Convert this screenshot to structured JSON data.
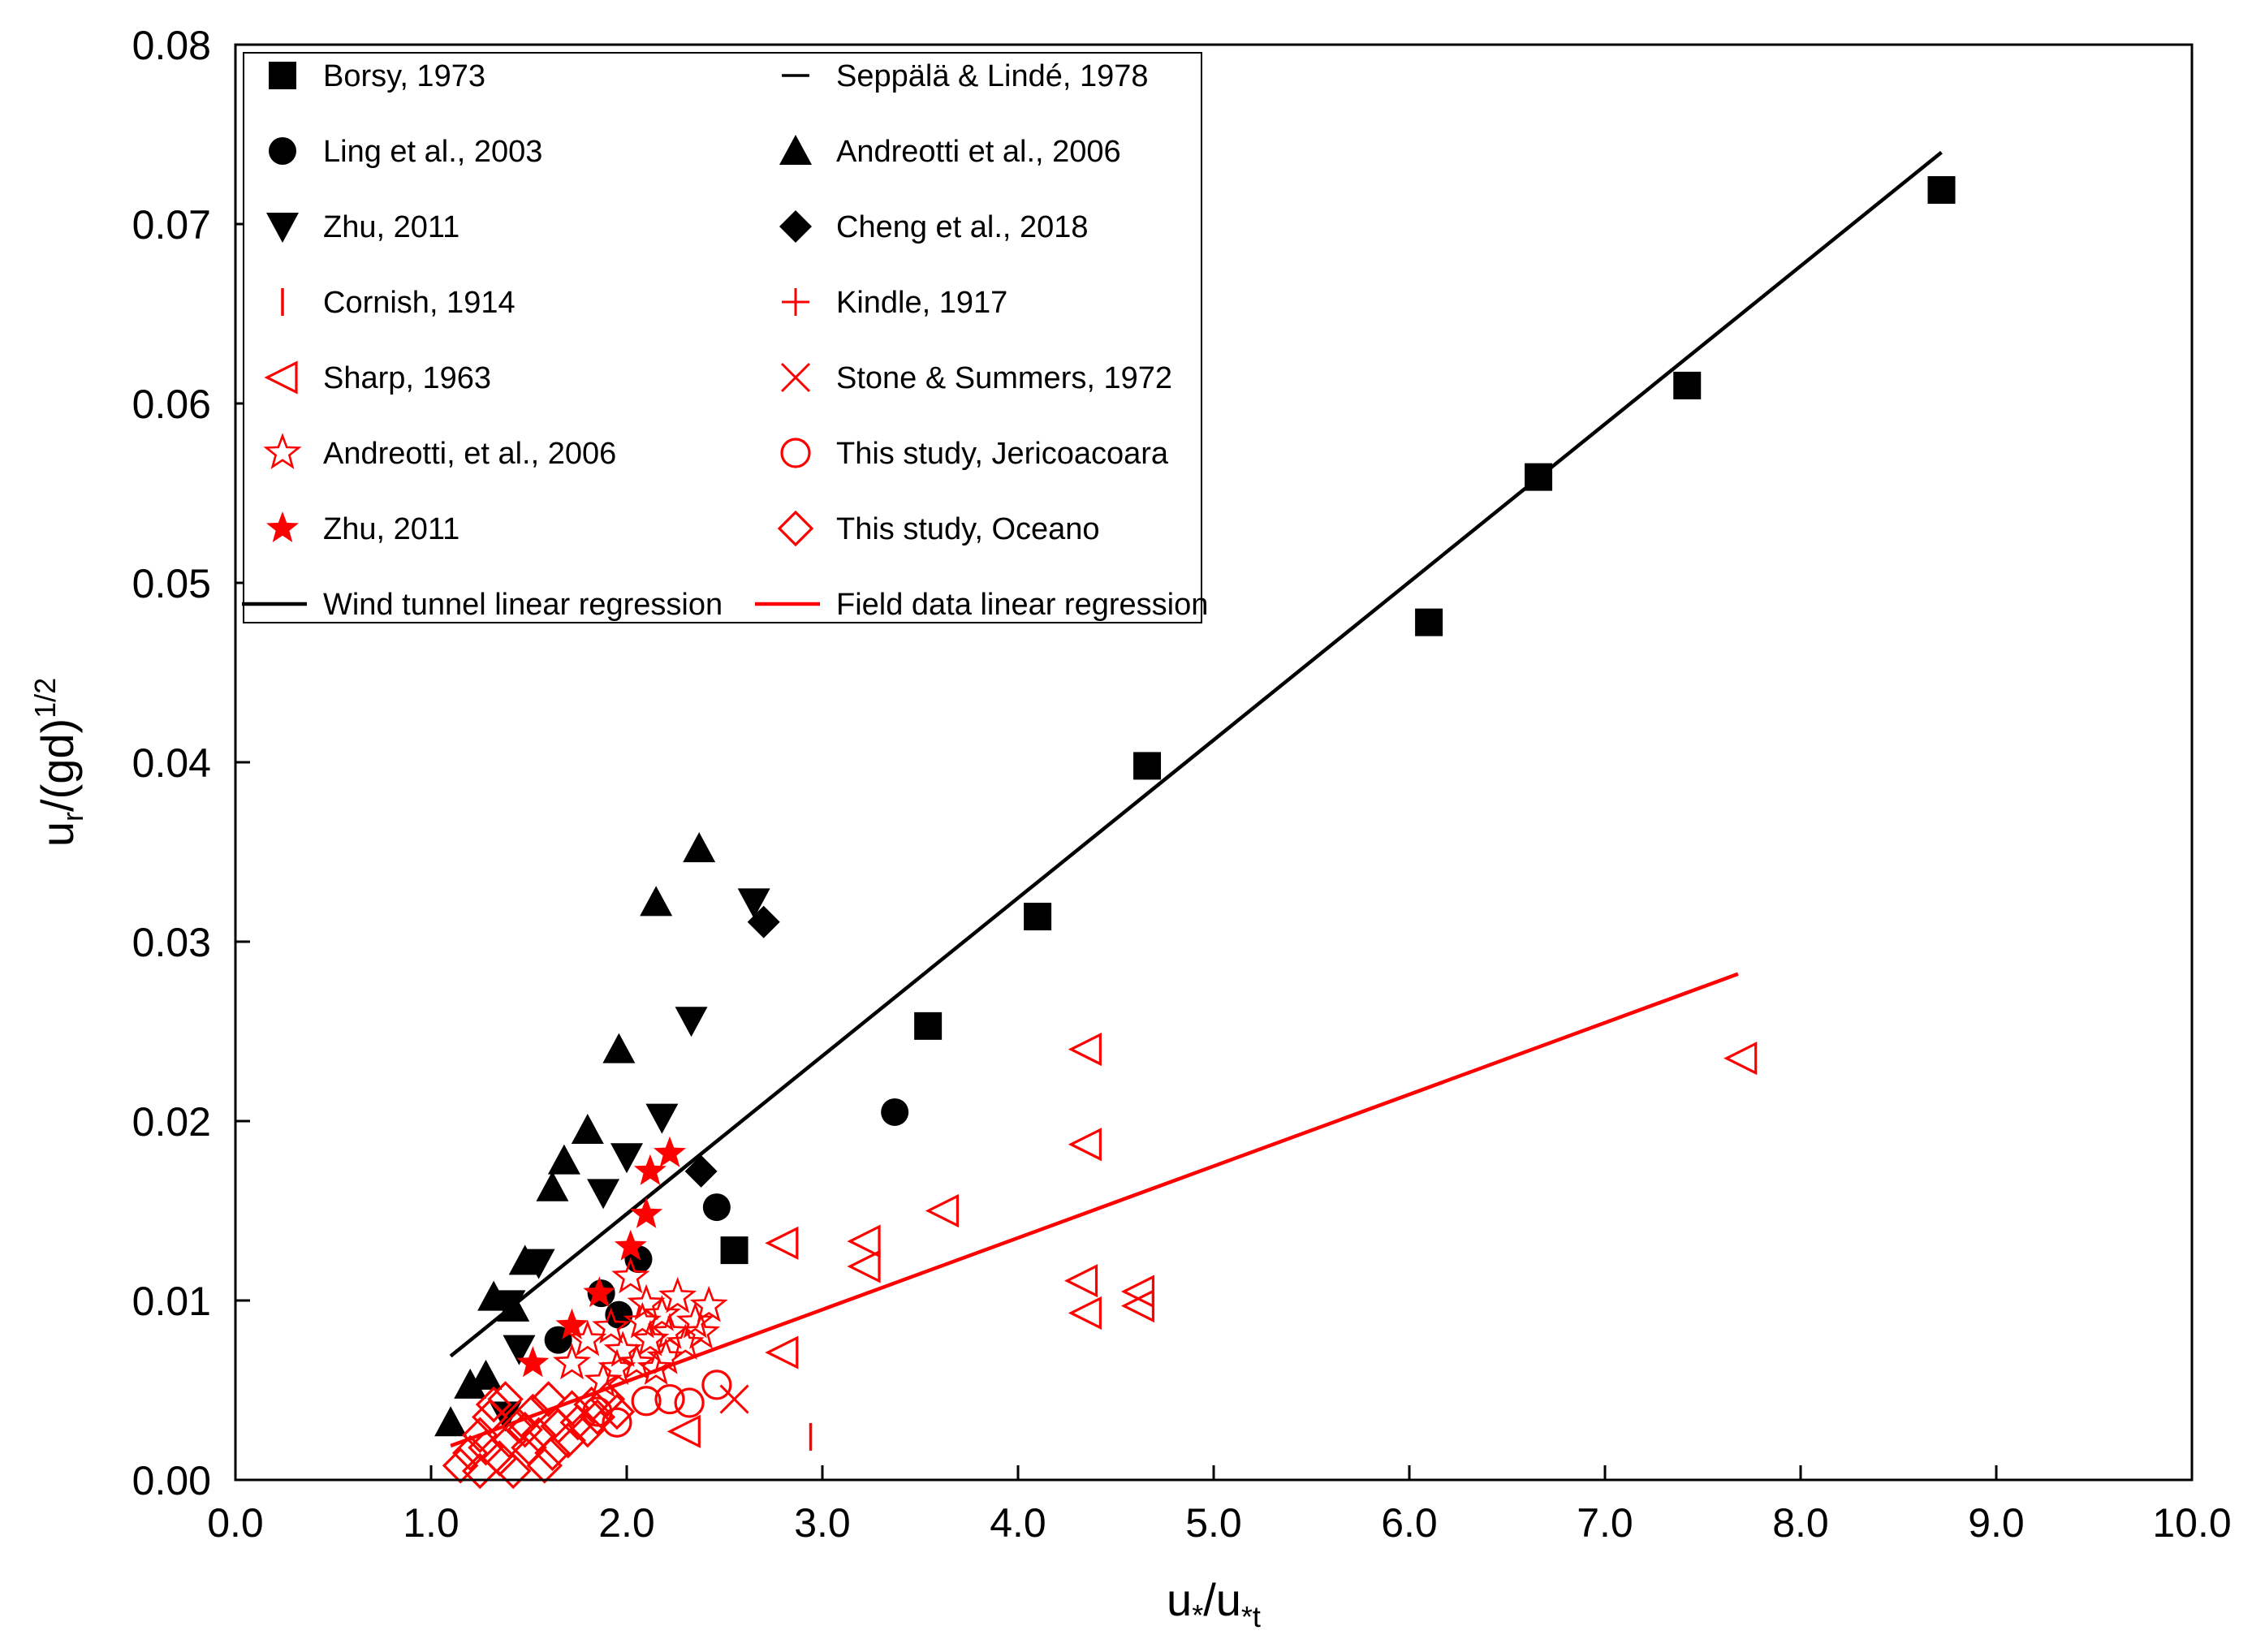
{
  "chart_data": {
    "type": "scatter",
    "title": "",
    "xlabel": {
      "main": "u",
      "sub1": "*",
      "sep": "/u",
      "sub2": "*t"
    },
    "ylabel": {
      "main": "u",
      "sub": "r",
      "rest": "/(gd)",
      "sup": "1/2"
    },
    "xlim": [
      0.0,
      10.0
    ],
    "ylim": [
      0.0,
      0.08
    ],
    "x_ticks": [
      0.0,
      1.0,
      2.0,
      3.0,
      4.0,
      5.0,
      6.0,
      7.0,
      8.0,
      9.0,
      10.0
    ],
    "y_ticks": [
      0.0,
      0.01,
      0.02,
      0.03,
      0.04,
      0.05,
      0.06,
      0.07,
      0.08
    ],
    "x_tick_labels": [
      "0.0",
      "1.0",
      "2.0",
      "3.0",
      "4.0",
      "5.0",
      "6.0",
      "7.0",
      "8.0",
      "9.0",
      "10.0"
    ],
    "y_tick_labels": [
      "0.00",
      "0.01",
      "0.02",
      "0.03",
      "0.04",
      "0.05",
      "0.06",
      "0.07",
      "0.08"
    ],
    "grid": false,
    "legend_position": "top-left",
    "colors": {
      "black": "#000000",
      "red": "#ff0000"
    },
    "series": [
      {
        "name": "Borsy, 1973",
        "marker": "square-filled",
        "color": "#000000",
        "points": [
          [
            2.55,
            0.0128
          ],
          [
            3.54,
            0.0253
          ],
          [
            4.1,
            0.0314
          ],
          [
            4.66,
            0.0398
          ],
          [
            6.1,
            0.0478
          ],
          [
            6.66,
            0.0559
          ],
          [
            7.42,
            0.061
          ],
          [
            8.72,
            0.0719
          ]
        ]
      },
      {
        "name": "Seppälä & Lindé, 1978",
        "marker": "dash",
        "color": "#000000",
        "points": []
      },
      {
        "name": "Ling et al., 2003",
        "marker": "circle-filled",
        "color": "#000000",
        "points": [
          [
            1.65,
            0.0078
          ],
          [
            1.87,
            0.0104
          ],
          [
            2.06,
            0.0123
          ],
          [
            2.46,
            0.0152
          ],
          [
            3.37,
            0.0205
          ],
          [
            1.96,
            0.0092
          ]
        ]
      },
      {
        "name": "Andreotti et al., 2006",
        "marker": "triangle-up-filled",
        "color": "#000000",
        "points": [
          [
            1.1,
            0.0032
          ],
          [
            1.2,
            0.0053
          ],
          [
            1.32,
            0.0102
          ],
          [
            1.48,
            0.0122
          ],
          [
            1.62,
            0.0163
          ],
          [
            1.68,
            0.0178
          ],
          [
            1.8,
            0.0195
          ],
          [
            1.96,
            0.024
          ],
          [
            2.15,
            0.0322
          ],
          [
            2.37,
            0.0352
          ],
          [
            1.42,
            0.0096
          ],
          [
            1.28,
            0.0058
          ]
        ]
      },
      {
        "name": "Zhu, 2011",
        "marker": "triangle-down-filled",
        "color": "#000000",
        "points": [
          [
            1.38,
            0.0036
          ],
          [
            1.45,
            0.0073
          ],
          [
            1.55,
            0.0121
          ],
          [
            1.88,
            0.016
          ],
          [
            2.0,
            0.018
          ],
          [
            2.18,
            0.0202
          ],
          [
            2.33,
            0.0256
          ],
          [
            2.65,
            0.0322
          ],
          [
            1.4,
            0.0098
          ]
        ]
      },
      {
        "name": "Cheng et al., 2018",
        "marker": "diamond-filled",
        "color": "#000000",
        "points": [
          [
            2.38,
            0.0172
          ],
          [
            2.7,
            0.0311
          ]
        ]
      },
      {
        "name": "Cornish, 1914",
        "marker": "vline",
        "color": "#ff0000",
        "points": [
          [
            2.94,
            0.0024
          ]
        ]
      },
      {
        "name": "Kindle, 1917",
        "marker": "plus",
        "color": "#ff0000",
        "points": []
      },
      {
        "name": "Sharp, 1963",
        "marker": "triangle-left-open",
        "color": "#ff0000",
        "points": [
          [
            2.3,
            0.0027
          ],
          [
            2.8,
            0.0071
          ],
          [
            2.8,
            0.0132
          ],
          [
            3.22,
            0.0133
          ],
          [
            3.22,
            0.0119
          ],
          [
            3.62,
            0.015
          ],
          [
            4.35,
            0.024
          ],
          [
            4.35,
            0.0187
          ],
          [
            4.33,
            0.0111
          ],
          [
            4.35,
            0.0093
          ],
          [
            4.62,
            0.0105
          ],
          [
            4.62,
            0.0097
          ],
          [
            7.7,
            0.0235
          ]
        ]
      },
      {
        "name": "Stone & Summers, 1972",
        "marker": "x",
        "color": "#ff0000",
        "points": [
          [
            2.55,
            0.0045
          ]
        ]
      },
      {
        "name": "Andreotti, et al., 2006",
        "marker": "star-open",
        "color": "#ff0000",
        "points": [
          [
            1.72,
            0.0065
          ],
          [
            1.8,
            0.0078
          ],
          [
            1.88,
            0.0055
          ],
          [
            1.92,
            0.0085
          ],
          [
            1.98,
            0.0072
          ],
          [
            2.02,
            0.0113
          ],
          [
            2.05,
            0.0065
          ],
          [
            2.08,
            0.0088
          ],
          [
            2.12,
            0.0078
          ],
          [
            2.15,
            0.0062
          ],
          [
            2.18,
            0.0092
          ],
          [
            2.22,
            0.0082
          ],
          [
            2.26,
            0.0102
          ],
          [
            2.3,
            0.0076
          ],
          [
            2.35,
            0.0088
          ],
          [
            2.42,
            0.0097
          ],
          [
            2.2,
            0.0068
          ],
          [
            1.95,
            0.0062
          ],
          [
            2.1,
            0.0098
          ],
          [
            2.38,
            0.0082
          ]
        ]
      },
      {
        "name": "This study, Jericoacoara",
        "marker": "circle-open",
        "color": "#ff0000",
        "points": [
          [
            1.95,
            0.0032
          ],
          [
            2.1,
            0.0044
          ],
          [
            2.22,
            0.0045
          ],
          [
            2.32,
            0.0043
          ],
          [
            2.46,
            0.0053
          ],
          [
            1.85,
            0.0038
          ]
        ]
      },
      {
        "name": "Zhu, 2011",
        "marker": "star-filled",
        "color": "#ff0000",
        "points": [
          [
            1.52,
            0.0065
          ],
          [
            1.72,
            0.0086
          ],
          [
            1.86,
            0.0104
          ],
          [
            2.02,
            0.013
          ],
          [
            2.1,
            0.0148
          ],
          [
            2.12,
            0.0172
          ],
          [
            2.22,
            0.0182
          ]
        ]
      },
      {
        "name": "This study, Oceano",
        "marker": "diamond-open",
        "color": "#ff0000",
        "points": [
          [
            1.15,
            0.0008
          ],
          [
            1.2,
            0.0015
          ],
          [
            1.25,
            0.0025
          ],
          [
            1.3,
            0.0035
          ],
          [
            1.32,
            0.0042
          ],
          [
            1.35,
            0.0012
          ],
          [
            1.4,
            0.0022
          ],
          [
            1.42,
            0.0005
          ],
          [
            1.45,
            0.003
          ],
          [
            1.5,
            0.0018
          ],
          [
            1.52,
            0.0038
          ],
          [
            1.55,
            0.0025
          ],
          [
            1.58,
            0.0008
          ],
          [
            1.6,
            0.0045
          ],
          [
            1.62,
            0.0015
          ],
          [
            1.65,
            0.003
          ],
          [
            1.7,
            0.0022
          ],
          [
            1.72,
            0.004
          ],
          [
            1.75,
            0.0032
          ],
          [
            1.8,
            0.0028
          ],
          [
            1.82,
            0.0042
          ],
          [
            1.85,
            0.0035
          ],
          [
            1.9,
            0.0045
          ],
          [
            1.95,
            0.0038
          ],
          [
            1.25,
            0.0005
          ],
          [
            1.48,
            0.0028
          ],
          [
            1.38,
            0.0045
          ],
          [
            1.28,
            0.0018
          ]
        ]
      }
    ],
    "lines": [
      {
        "name": "Wind tunnel linear regression",
        "color": "#000000",
        "x": [
          1.1,
          8.72
        ],
        "y": [
          0.0069,
          0.074
        ]
      },
      {
        "name": "Field data linear regression",
        "color": "#ff0000",
        "x": [
          1.1,
          7.68
        ],
        "y": [
          0.0019,
          0.0282
        ]
      }
    ],
    "legend": [
      {
        "label": "Borsy, 1973",
        "marker": "square-filled",
        "color": "#000000"
      },
      {
        "label": "Seppälä & Lindé, 1978",
        "marker": "dash",
        "color": "#000000"
      },
      {
        "label": "Ling et al., 2003",
        "marker": "circle-filled",
        "color": "#000000"
      },
      {
        "label": "Andreotti et al., 2006",
        "marker": "triangle-up-filled",
        "color": "#000000"
      },
      {
        "label": "Zhu, 2011",
        "marker": "triangle-down-filled",
        "color": "#000000"
      },
      {
        "label": "Cheng et al., 2018",
        "marker": "diamond-filled",
        "color": "#000000"
      },
      {
        "label": "Cornish, 1914",
        "marker": "vline",
        "color": "#ff0000"
      },
      {
        "label": "Kindle, 1917",
        "marker": "plus",
        "color": "#ff0000"
      },
      {
        "label": "Sharp, 1963",
        "marker": "triangle-left-open",
        "color": "#ff0000"
      },
      {
        "label": "Stone & Summers, 1972",
        "marker": "x",
        "color": "#ff0000"
      },
      {
        "label": "Andreotti, et al., 2006",
        "marker": "star-open",
        "color": "#ff0000"
      },
      {
        "label": "This study, Jericoacoara",
        "marker": "circle-open",
        "color": "#ff0000"
      },
      {
        "label": "Zhu, 2011",
        "marker": "star-filled",
        "color": "#ff0000"
      },
      {
        "label": "This study, Oceano",
        "marker": "diamond-open",
        "color": "#ff0000"
      },
      {
        "label": "Wind tunnel linear regression",
        "marker": "line",
        "color": "#000000"
      },
      {
        "label": "Field data linear regression",
        "marker": "line",
        "color": "#ff0000"
      }
    ]
  }
}
